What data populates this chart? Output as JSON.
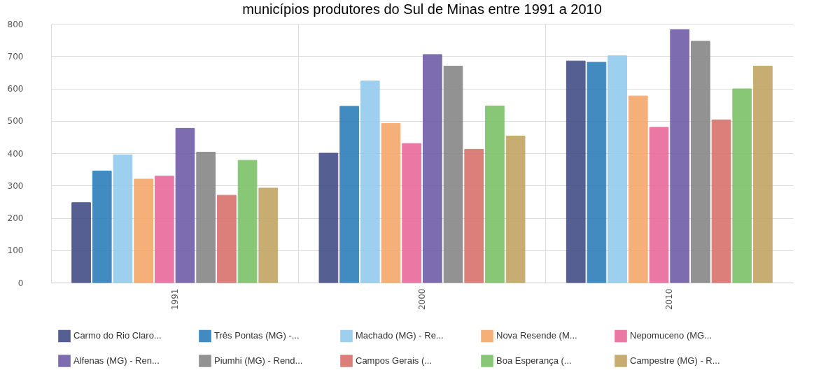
{
  "chart_data": {
    "type": "bar",
    "title": "municípios produtores do Sul de Minas entre 1991 a 2010",
    "categories": [
      "1991",
      "2000",
      "2010"
    ],
    "series": [
      {
        "name": "Carmo do Rio Claro...",
        "color": "#444e86",
        "values": [
          247,
          400,
          685
        ]
      },
      {
        "name": "Três Pontas (MG) -...",
        "color": "#2e7fba",
        "values": [
          345,
          545,
          681
        ]
      },
      {
        "name": "Machado (MG) - Re...",
        "color": "#93caed",
        "values": [
          395,
          623,
          701
        ]
      },
      {
        "name": "Nova Resende (M...",
        "color": "#f5a86b",
        "values": [
          320,
          492,
          577
        ]
      },
      {
        "name": "Nepomuceno (MG...",
        "color": "#e96a9b",
        "values": [
          329,
          430,
          480
        ]
      },
      {
        "name": "Alfenas (MG) - Ren...",
        "color": "#6f5ea8",
        "values": [
          477,
          705,
          782
        ]
      },
      {
        "name": "Piumhi (MG) - Rend...",
        "color": "#878787",
        "values": [
          403,
          669,
          746
        ]
      },
      {
        "name": "Campos Gerais (...",
        "color": "#d9716b",
        "values": [
          270,
          412,
          503
        ]
      },
      {
        "name": "Boa Esperança (...",
        "color": "#7cc267",
        "values": [
          378,
          546,
          599
        ]
      },
      {
        "name": "Campestre (MG) - R...",
        "color": "#c1a562",
        "values": [
          292,
          453,
          669
        ]
      }
    ],
    "ylim": [
      0,
      800
    ],
    "yticks": [
      0,
      100,
      200,
      300,
      400,
      500,
      600,
      700,
      800
    ],
    "grid": true,
    "legend": "bottom"
  }
}
